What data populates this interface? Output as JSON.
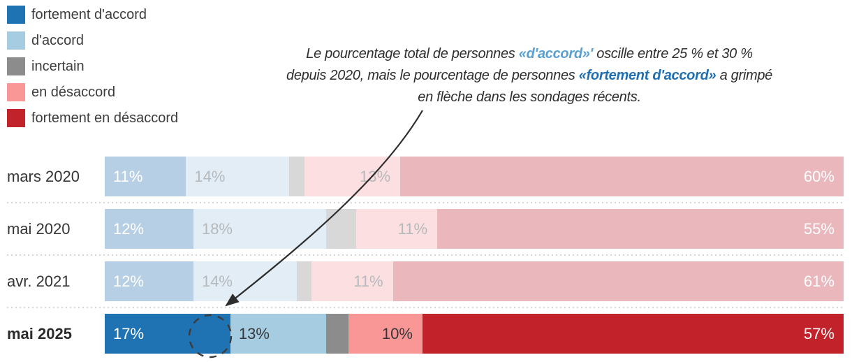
{
  "annotation": {
    "parts": [
      {
        "text": "Le pourcentage total de personnes ",
        "style": "plain"
      },
      {
        "text": "«d'accord»'",
        "style": "light-blue-bold"
      },
      {
        "text": " oscille entre 25 % et 30 % depuis 2020, mais le pourcentage de personnes ",
        "style": "plain"
      },
      {
        "text": "«fortement d'accord»",
        "style": "dark-blue-bold"
      },
      {
        "text": " a grimpé en flèche dans les sondages récents.",
        "style": "plain"
      }
    ],
    "arrow_points_to": "mai 2025 segment fortement d'accord"
  },
  "chart_data": {
    "type": "bar",
    "stacked": true,
    "orientation": "horizontal",
    "value_unit": "%",
    "categories": [
      "mars 2020",
      "mai 2020",
      "avr. 2021",
      "mai 2025"
    ],
    "series": [
      {
        "name": "fortement d'accord",
        "color": "#1f73b2",
        "color_faded": "#b7cfe4",
        "values": [
          11,
          12,
          12,
          17
        ]
      },
      {
        "name": "d'accord",
        "color": "#a6cce2",
        "color_faded": "#e2edf5",
        "values": [
          14,
          18,
          14,
          13
        ]
      },
      {
        "name": "incertain",
        "color": "#8c8c8c",
        "color_faded": "#d8d8d8",
        "values": [
          2,
          4,
          2,
          3
        ]
      },
      {
        "name": "en désaccord",
        "color": "#f99797",
        "color_faded": "#fcdfe1",
        "values": [
          13,
          11,
          11,
          10
        ]
      },
      {
        "name": "fortement en désaccord",
        "color": "#c2222a",
        "color_faded": "#eab7bd",
        "values": [
          60,
          55,
          61,
          57
        ]
      }
    ],
    "xlim": [
      0,
      100
    ],
    "highlighted_category": "mai 2025",
    "label_min_value": 10,
    "legend_position": "top-left",
    "grid": false
  },
  "colors": {
    "annotation_text": "#2e2e2e",
    "annotation_light_blue": "#58a0d3",
    "annotation_dark_blue": "#1e6fb2",
    "arrow": "#2d2d2d",
    "dashed_circle": "#3c3c3c",
    "separator_dots": "#d6d6d6"
  }
}
